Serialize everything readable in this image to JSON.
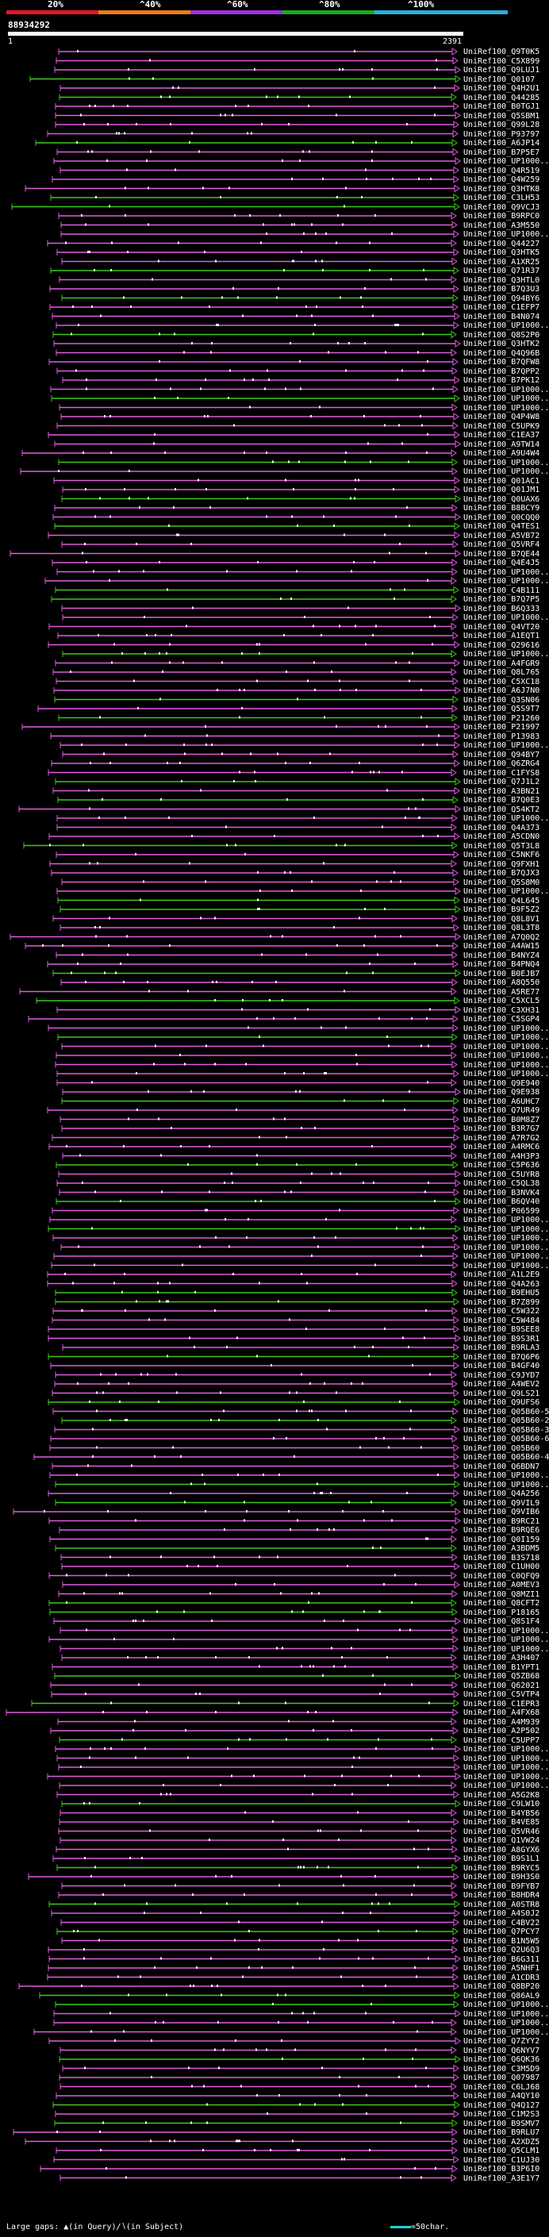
{
  "scale": {
    "labels": [
      "20%",
      "^40%",
      "^60%",
      "^80%",
      "^100%"
    ],
    "colors": [
      "#e8141e",
      "#f07a1a",
      "#9b2fe0",
      "#1ea81e",
      "#26b0d8"
    ]
  },
  "query": {
    "id": "88934292",
    "start": "1",
    "end": "2391"
  },
  "colors": {
    "magenta": "#e05ce0",
    "green": "#3fc81e",
    "gap": "#ffffff"
  },
  "hits": [
    "UniRef100_Q9T0K5",
    "UniRef100_C5X899",
    "UniRef100_Q9LUJ1",
    "UniRef100_Q0107",
    "UniRef100_Q4H2U1",
    "UniRef100_Q44285",
    "UniRef100_B0TGJ1",
    "UniRef100_Q5SBM1",
    "UniRef100_Q99L28",
    "UniRef100_P93797",
    "UniRef100_A6JP14",
    "UniRef100_B7P5E7",
    "UniRef100_UP1000..",
    "UniRef100_Q4R519",
    "UniRef100_Q4W259",
    "UniRef100_Q3HTK8",
    "UniRef100_C3LH53",
    "UniRef100_Q9VCJ3",
    "UniRef100_B9RPC0",
    "UniRef100_A3M550",
    "UniRef100_UP1000..",
    "UniRef100_Q44227",
    "UniRef100_Q3HTK5",
    "UniRef100_A1XR25",
    "UniRef100_Q71R37",
    "UniRef100_Q3HTL0",
    "UniRef100_B7Q3U3",
    "UniRef100_Q94BY6",
    "UniRef100_C1EFP7",
    "UniRef100_B4N074",
    "UniRef100_UP1000..",
    "UniRef100_Q8S2P0",
    "UniRef100_Q3HTK2",
    "UniRef100_Q4Q96B",
    "UniRef100_B7QFW8",
    "UniRef100_B7QPP2",
    "UniRef100_B7PK12",
    "UniRef100_UP1000..",
    "UniRef100_UP1000..",
    "UniRef100_UP1000..",
    "UniRef100_Q4P4W8",
    "UniRef100_C5UPK9",
    "UniRef100_C1EA37",
    "UniRef100_A9TW14",
    "UniRef100_A9U4W4",
    "UniRef100_UP1000..",
    "UniRef100_UP1000..",
    "UniRef100_Q01AC1",
    "UniRef100_Q01JM1",
    "UniRef100_Q0UAX6",
    "UniRef100_B8BCY9",
    "UniRef100_Q0CQQ0",
    "UniRef100_Q4TES1",
    "UniRef100_A5VB72",
    "UniRef100_Q5VRF4",
    "UniRef100_B7QE44",
    "UniRef100_Q4E4J5",
    "UniRef100_UP1000..",
    "UniRef100_UP1000..",
    "UniRef100_C4B111",
    "UniRef100_B7Q7P5",
    "UniRef100_B6Q333",
    "UniRef100_UP1000..",
    "UniRef100_Q4VT20",
    "UniRef100_A1EQT1",
    "UniRef100_Q29616",
    "UniRef100_UP1000..",
    "UniRef100_A4FGR9",
    "UniRef100_Q8L765",
    "UniRef100_C5XC18",
    "UniRef100_A6J7N0",
    "UniRef100_Q3SN06",
    "UniRef100_Q5S9T7",
    "UniRef100_P21260",
    "UniRef100_P21997",
    "UniRef100_P13983",
    "UniRef100_UP1000..",
    "UniRef100_Q94BY7",
    "UniRef100_Q6ZRG4",
    "UniRef100_C1FYS8",
    "UniRef100_Q7J1L2",
    "UniRef100_A3BN21",
    "UniRef100_B7Q0E3",
    "UniRef100_Q54KT2",
    "UniRef100_UP1000..",
    "UniRef100_Q4A373",
    "UniRef100_A5CDN0",
    "UniRef100_Q5T3L8",
    "UniRef100_C5NKF6",
    "UniRef100_Q9FXH1",
    "UniRef100_B7QJX3",
    "UniRef100_Q5S8M0",
    "UniRef100_UP1000..",
    "UniRef100_Q4L645",
    "UniRef100_B9F5Z2",
    "UniRef100_Q8L8V1",
    "UniRef100_Q8L3T8",
    "UniRef100_A7Q0Q2",
    "UniRef100_A4AW15",
    "UniRef100_B4NYZ4",
    "UniRef100_B4PNQ4",
    "UniRef100_B0EJB7",
    "UniRef100_A8Q550",
    "UniRef100_A5RE77",
    "UniRef100_C5XCL5",
    "UniRef100_C3XH31",
    "UniRef100_C5SGP4",
    "UniRef100_UP1000..",
    "UniRef100_UP1000..",
    "UniRef100_UP1000..",
    "UniRef100_UP1000..",
    "UniRef100_UP1000..",
    "UniRef100_UP1000..",
    "UniRef100_Q9E940",
    "UniRef100_Q9E938",
    "UniRef100_A6UHC7",
    "UniRef100_Q7UR49",
    "UniRef100_B0M8Z7",
    "UniRef100_B3R7G7",
    "UniRef100_A7R7G2",
    "UniRef100_A4RMC6",
    "UniRef100_A4H3P3",
    "UniRef100_C5P636",
    "UniRef100_C5UYR8",
    "UniRef100_C5QL38",
    "UniRef100_B3NVK4",
    "UniRef100_B6QV40",
    "UniRef100_P06599",
    "UniRef100_UP1000..",
    "UniRef100_UP1000..",
    "UniRef100_UP1000..",
    "UniRef100_UP1000..",
    "UniRef100_UP1000..",
    "UniRef100_UP1000..",
    "UniRef100_A1L2E9",
    "UniRef100_Q4A263",
    "UniRef100_B9EHU5",
    "UniRef100_B7Z899",
    "UniRef100_C5W322",
    "UniRef100_C5W484",
    "UniRef100_B9SEE8",
    "UniRef100_B9S3R1",
    "UniRef100_B9RLA3",
    "UniRef100_B7Q6P6",
    "UniRef100_B4GF40",
    "UniRef100_C9JYD7",
    "UniRef100_A4WEV2",
    "UniRef100_Q9LS21",
    "UniRef100_Q9UFS6",
    "UniRef100_Q05B60-5",
    "UniRef100_Q05B60-2",
    "UniRef100_Q05B60-3",
    "UniRef100_Q05B60-6",
    "UniRef100_Q05B60",
    "UniRef100_Q05B60-4",
    "UniRef100_Q6BDN7",
    "UniRef100_UP1000..",
    "UniRef100_UP1000..",
    "UniRef100_Q4A256",
    "UniRef100_Q9VIL9",
    "UniRef100_Q9VIB6",
    "UniRef100_B9RC21",
    "UniRef100_B9RQE6",
    "UniRef100_Q0I159",
    "UniRef100_A3BDM5",
    "UniRef100_B3S718",
    "UniRef100_C1UH00",
    "UniRef100_C0QFQ9",
    "UniRef100_A0MEV3",
    "UniRef100_Q8MZI1",
    "UniRef100_Q8CFT2",
    "UniRef100_P18165",
    "UniRef100_Q8S1F4",
    "UniRef100_UP1000..",
    "UniRef100_UP1000..",
    "UniRef100_UP1000..",
    "UniRef100_A3H407",
    "UniRef100_B1YPT1",
    "UniRef100_Q5ZB68",
    "UniRef100_Q62021",
    "UniRef100_C5VTP4",
    "UniRef100_C1EPR3",
    "UniRef100_A4FX68",
    "UniRef100_A4M939",
    "UniRef100_A2P502",
    "UniRef100_C5UPP7",
    "UniRef100_UP1000..",
    "UniRef100_UP1000..",
    "UniRef100_UP1000..",
    "UniRef100_UP1000..",
    "UniRef100_UP1000..",
    "UniRef100_A5G2K8",
    "UniRef100_C9LW10",
    "UniRef100_B4YB56",
    "UniRef100_B4VE85",
    "UniRef100_Q5VR46",
    "UniRef100_Q1VW24",
    "UniRef100_A8GYX6",
    "UniRef100_B9S1L1",
    "UniRef100_B9RYC5",
    "UniRef100_B9H3S0",
    "UniRef100_B9FYB7",
    "UniRef100_B8HDR4",
    "UniRef100_A0STR8",
    "UniRef100_A4S0J2",
    "UniRef100_C4BV22",
    "UniRef100_Q7PCY7",
    "UniRef100_B1N5W5",
    "UniRef100_Q2U6Q3",
    "UniRef100_B6G311",
    "UniRef100_A5NHF1",
    "UniRef100_A1CDR3",
    "UniRef100_Q8BP20",
    "UniRef100_Q86AL9",
    "UniRef100_UP1000..",
    "UniRef100_UP1000..",
    "UniRef100_UP1000..",
    "UniRef100_UP1000..",
    "UniRef100_Q7ZYY2",
    "UniRef100_Q6NYV7",
    "UniRef100_Q6QK36",
    "UniRef100_C3M5D9",
    "UniRef100_Q07987",
    "UniRef100_C6LJ68",
    "UniRef100_A4QY10",
    "UniRef100_Q4Q127",
    "UniRef100_C1M2S3",
    "UniRef100_B9SMV7",
    "UniRef100_B9RLU7",
    "UniRef100_A2XDZ5",
    "UniRef100_Q5CLM1",
    "UniRef100_C1UJ30",
    "UniRef100_B3P6I0",
    "UniRef100_A3E1Y7"
  ],
  "legend": {
    "text": "Large gaps:",
    "query_gap": "(in Query)/",
    "subject_gap": "(in Subject)",
    "scale_note": "=50char."
  }
}
